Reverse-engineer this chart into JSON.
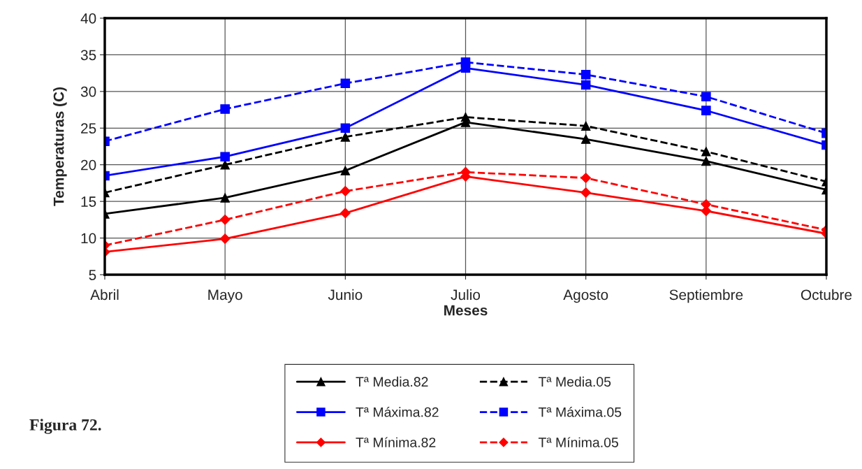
{
  "chart_data": {
    "type": "line",
    "xlabel": "Meses",
    "ylabel": "Temperaturas (C)",
    "categories": [
      "Abril",
      "Mayo",
      "Junio",
      "Julio",
      "Agosto",
      "Septiembre",
      "Octubre"
    ],
    "series": [
      {
        "name": "Tª Media.82",
        "color": "#000000",
        "marker": "triangle",
        "line_style": "solid",
        "values": [
          13.3,
          15.5,
          19.2,
          25.8,
          23.5,
          20.5,
          16.6
        ]
      },
      {
        "name": "Tª Media.05",
        "color": "#000000",
        "marker": "triangle",
        "line_style": "dashed",
        "values": [
          16.2,
          20.0,
          23.8,
          26.5,
          25.3,
          21.8,
          17.7
        ]
      },
      {
        "name": "Tª Máxima.82",
        "color": "#0000ff",
        "marker": "square",
        "line_style": "solid",
        "values": [
          18.5,
          21.1,
          25.0,
          33.2,
          30.9,
          27.4,
          22.7
        ]
      },
      {
        "name": "Tª Máxima.05",
        "color": "#0000ff",
        "marker": "square",
        "line_style": "dashed",
        "values": [
          23.2,
          27.6,
          31.1,
          34.0,
          32.3,
          29.3,
          24.3
        ]
      },
      {
        "name": "Tª Mínima.82",
        "color": "#ff0000",
        "marker": "diamond",
        "line_style": "solid",
        "values": [
          8.1,
          9.9,
          13.4,
          18.4,
          16.2,
          13.7,
          10.6
        ]
      },
      {
        "name": "Tª Mínima.05",
        "color": "#ff0000",
        "marker": "diamond",
        "line_style": "dashed",
        "values": [
          9.0,
          12.5,
          16.4,
          19.0,
          18.2,
          14.6,
          11.1
        ]
      }
    ],
    "ylim": [
      5,
      40
    ],
    "yticks": [
      5,
      10,
      15,
      20,
      25,
      30,
      35,
      40
    ],
    "grid": true,
    "legend": "bottom",
    "annotations": [
      "Figura 72."
    ]
  }
}
